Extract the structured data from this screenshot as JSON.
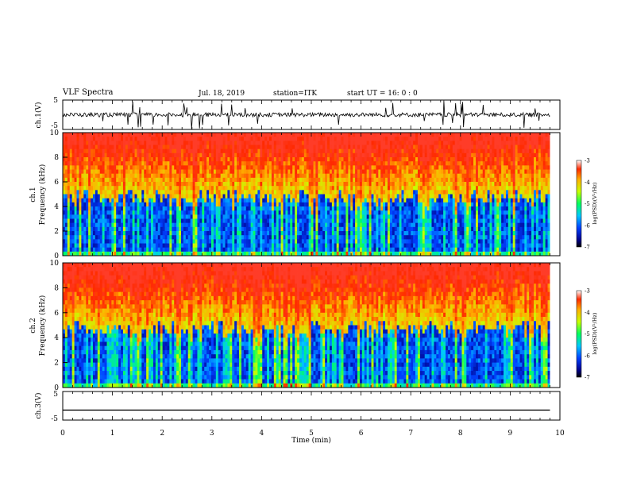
{
  "header": {
    "title": "VLF Spectra",
    "date": "Jul. 18, 2019",
    "station": "station=ITK",
    "start": "start UT =   16: 0  : 0"
  },
  "chart_data": [
    {
      "type": "line",
      "panel": "ch1-waveform",
      "ylabel": "ch.1(V)",
      "ylim": [
        -5,
        5
      ],
      "yticks": [
        "5",
        "-5"
      ],
      "x": [
        0,
        10
      ],
      "xlabel": "",
      "description_values": {
        "baseline": 0,
        "spike_max": 5,
        "spike_min": -5
      }
    },
    {
      "type": "heatmap",
      "panel": "ch1-spectrogram",
      "ylabel": "ch.1\nFrequency (kHz)",
      "ylim": [
        0,
        10
      ],
      "yticks": [
        "0",
        "2",
        "4",
        "6",
        "8",
        "10"
      ],
      "xlim": [
        0,
        9.8
      ],
      "colorbar": {
        "label": "log(PSD)(V²/Hz)",
        "range": [
          -7,
          -3
        ],
        "ticks": [
          "-3",
          "-4",
          "-5",
          "-6",
          "-7"
        ]
      }
    },
    {
      "type": "heatmap",
      "panel": "ch2-spectrogram",
      "ylabel": "ch.2\nFrequency (kHz)",
      "ylim": [
        0,
        10
      ],
      "yticks": [
        "0",
        "2",
        "4",
        "6",
        "8",
        "10"
      ],
      "xlim": [
        0,
        9.8
      ],
      "colorbar": {
        "label": "log(PSD)(V²/Hz)",
        "range": [
          -7,
          -3
        ],
        "ticks": [
          "-3",
          "-4",
          "-5",
          "-6",
          "-7"
        ]
      }
    },
    {
      "type": "line",
      "panel": "ch3-waveform",
      "ylabel": "ch.3(V)",
      "ylim": [
        -5,
        5
      ],
      "yticks": [
        "5",
        "-5"
      ],
      "x": [
        0,
        9.8
      ],
      "y_constant": -1.5,
      "xlabel": "Time (min)",
      "xticks": [
        "0",
        "1",
        "2",
        "3",
        "4",
        "5",
        "6",
        "7",
        "8",
        "9",
        "10"
      ]
    }
  ]
}
